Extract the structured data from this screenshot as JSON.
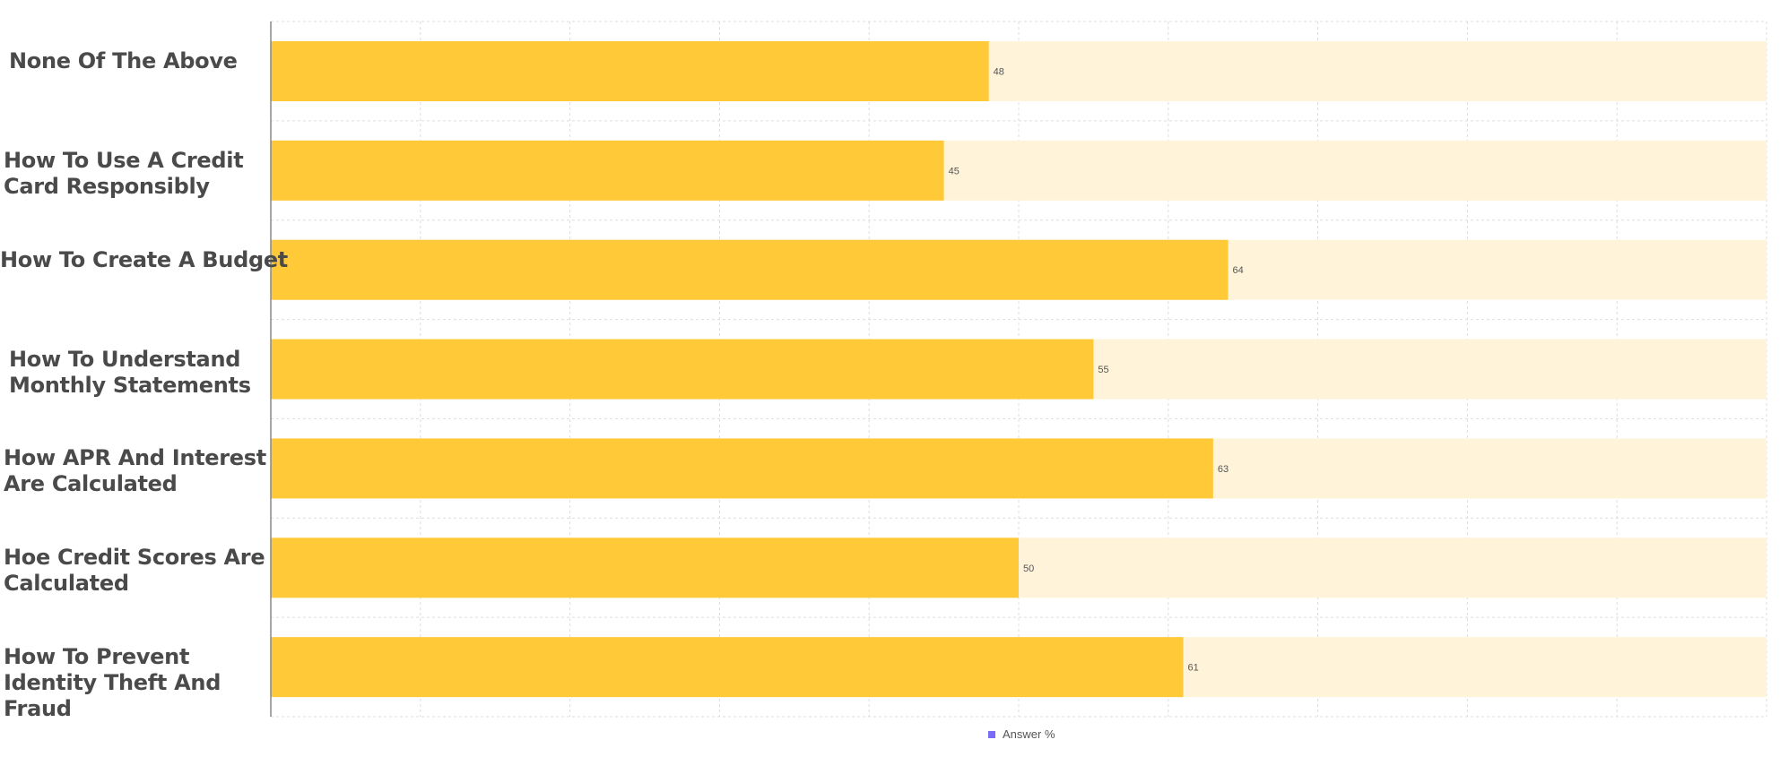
{
  "chart_data": {
    "type": "bar",
    "orientation": "horizontal",
    "categories": [
      "None Of The Above",
      "How To Use A Credit Card Responsibly",
      "How To Create A Budget",
      "How To Understand Monthly Statements",
      "How APR And Interest Are Calculated",
      "Hoe Credit Scores Are Calculated",
      "How To Prevent Identity Theft And Fraud"
    ],
    "series": [
      {
        "name": "Answer %",
        "values": [
          48,
          45,
          64,
          55,
          63,
          50,
          61
        ]
      }
    ],
    "xlim": [
      0,
      100
    ],
    "grid": true,
    "legend_position": "bottom-center",
    "colors": {
      "bar": "#FFC938",
      "track": "#FFF4D9",
      "legend_marker": "#7B6CF6",
      "grid": "#DDDDDD",
      "axis": "#888888",
      "value_label": "#555555",
      "category_label": "#4A4A4A"
    }
  }
}
